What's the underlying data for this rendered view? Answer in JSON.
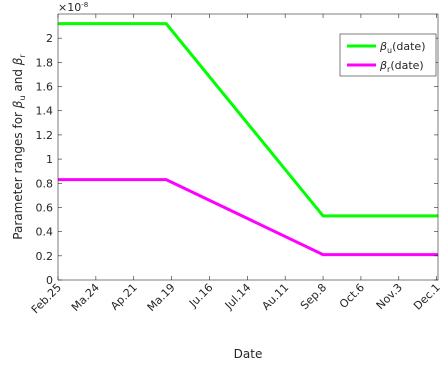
{
  "chart_data": {
    "type": "line",
    "title": "",
    "xlabel": "Date",
    "ylabel_parts": {
      "prefix": "Parameter ranges for ",
      "b1": "β",
      "s1": "u",
      "mid": " and ",
      "b2": "β",
      "s2": "r"
    },
    "exponent_label": "×10",
    "exponent_power": "-8",
    "x_ticks": [
      {
        "label": "Feb.25",
        "day": 0
      },
      {
        "label": "Ma.24",
        "day": 28
      },
      {
        "label": "Ap.21",
        "day": 56
      },
      {
        "label": "Ma.19",
        "day": 84
      },
      {
        "label": "Ju.16",
        "day": 112
      },
      {
        "label": "Jul.14",
        "day": 140
      },
      {
        "label": "Au.11",
        "day": 168
      },
      {
        "label": "Sep.8",
        "day": 196
      },
      {
        "label": "Oct.6",
        "day": 224
      },
      {
        "label": "Nov.3",
        "day": 252
      },
      {
        "label": "Dec.1",
        "day": 280
      }
    ],
    "xlim": [
      0,
      281
    ],
    "y_ticks": [
      "0",
      "0.2",
      "0.4",
      "0.6",
      "0.8",
      "1",
      "1.2",
      "1.4",
      "1.6",
      "1.8",
      "2"
    ],
    "ylim": [
      0,
      2.2
    ],
    "y_scale": "×10^-8",
    "series": [
      {
        "name_base": "β",
        "name_sub": "u",
        "name_tail": "(date)",
        "color": "#00ff00",
        "x": [
          0,
          80,
          196,
          281
        ],
        "y": [
          2.12,
          2.12,
          0.53,
          0.53
        ]
      },
      {
        "name_base": "β",
        "name_sub": "r",
        "name_tail": "(date)",
        "color": "#ff00ff",
        "x": [
          0,
          80,
          196,
          281
        ],
        "y": [
          0.83,
          0.83,
          0.21,
          0.21
        ]
      }
    ],
    "legend_position": "top-right",
    "grid": false
  }
}
